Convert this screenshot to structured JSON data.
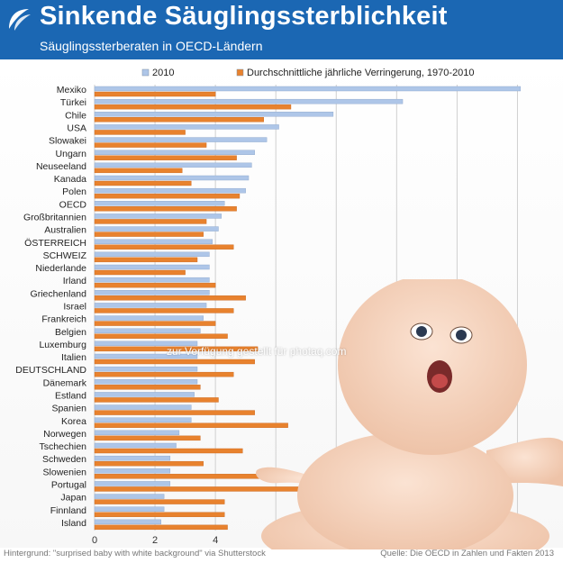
{
  "header": {
    "title": "Sinkende Säuglingssterblichkeit",
    "subtitle": "Säuglingssterberaten in OECD-Ländern",
    "brand_color": "#1b67b3",
    "logo_icon": "oecd-logo-icon"
  },
  "footer": {
    "left": "Hintergrund: \"surprised baby with white background\" via Shutterstock",
    "right": "Quelle: Die OECD in Zahlen und Fakten 2013"
  },
  "watermark": "zur Verfügung gestellt für photaq.com",
  "photo_icon": "surprised-baby-photo-icon",
  "chart_data": {
    "type": "bar",
    "orientation": "horizontal",
    "categories": [
      "Mexiko",
      "Türkei",
      "Chile",
      "USA",
      "Slowakei",
      "Ungarn",
      "Neuseeland",
      "Kanada",
      "Polen",
      "OECD",
      "Großbritannien",
      "Australien",
      "ÖSTERREICH",
      "SCHWEIZ",
      "Niederlande",
      "Irland",
      "Griechenland",
      "Israel",
      "Frankreich",
      "Belgien",
      "Luxemburg",
      "Italien",
      "DEUTSCHLAND",
      "Dänemark",
      "Estland",
      "Spanien",
      "Korea",
      "Norwegen",
      "Tschechien",
      "Schweden",
      "Slowenien",
      "Portugal",
      "Japan",
      "Finnland",
      "Island"
    ],
    "series": [
      {
        "name": "2010",
        "color": "#aec6e8",
        "values": [
          14.1,
          10.2,
          7.9,
          6.1,
          5.7,
          5.3,
          5.2,
          5.1,
          5.0,
          4.3,
          4.2,
          4.1,
          3.9,
          3.8,
          3.8,
          3.8,
          3.8,
          3.7,
          3.6,
          3.5,
          3.4,
          3.4,
          3.4,
          3.4,
          3.3,
          3.2,
          3.2,
          2.8,
          2.7,
          2.5,
          2.5,
          2.5,
          2.3,
          2.3,
          2.2
        ]
      },
      {
        "name": "Durchschnittliche jährliche Verringerung, 1970-2010",
        "color": "#e8822e",
        "values": [
          4.0,
          6.5,
          5.6,
          3.0,
          3.7,
          4.7,
          2.9,
          3.2,
          4.8,
          4.7,
          3.7,
          3.6,
          4.6,
          3.4,
          3.0,
          4.0,
          5.0,
          4.6,
          4.0,
          4.4,
          5.4,
          5.3,
          4.6,
          3.5,
          4.1,
          5.3,
          6.4,
          3.5,
          4.9,
          3.6,
          5.6,
          7.5,
          4.3,
          4.3,
          4.4
        ]
      }
    ],
    "xlim": [
      0,
      15
    ],
    "xticks": [
      "0",
      "2",
      "4",
      "6",
      "8",
      "10",
      "12",
      "14"
    ],
    "grid": true,
    "legend_position": "top"
  }
}
